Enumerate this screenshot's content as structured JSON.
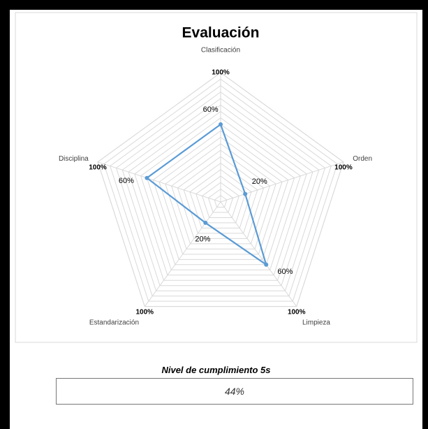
{
  "chart_data": {
    "type": "radar",
    "title": "Evaluación",
    "categories": [
      "Clasificación",
      "Orden",
      "Limpieza",
      "Estandarización",
      "Disciplina"
    ],
    "series": [
      {
        "color": "#d9d9d9",
        "values": [
          100,
          100,
          100,
          100,
          100
        ],
        "value_labels": [
          "100%",
          "100%",
          "100%",
          "100%",
          "100%"
        ]
      },
      {
        "color": "#5b9bd5",
        "values": [
          60,
          20,
          60,
          20,
          60
        ],
        "value_labels": [
          "60%",
          "20%",
          "60%",
          "20%",
          "60%"
        ]
      }
    ],
    "ylim": [
      0,
      100
    ],
    "yticks": [
      0,
      5,
      10,
      15,
      20,
      25,
      30,
      35,
      40,
      45,
      50,
      55,
      60,
      65,
      70,
      75,
      80,
      85,
      90,
      95,
      100
    ],
    "grid": true
  },
  "summary": {
    "label": "Nivel de cumplimiento 5s",
    "value": "44%"
  }
}
